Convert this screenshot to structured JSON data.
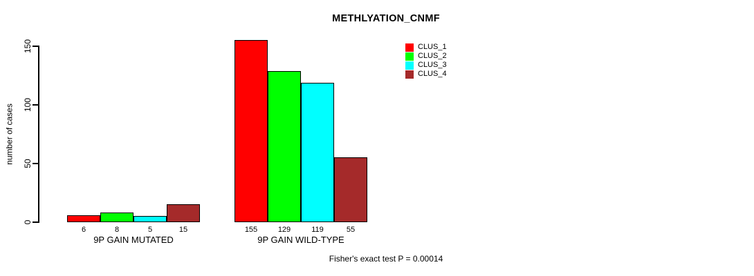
{
  "chart_data": {
    "type": "bar",
    "title": "METHLYATION_CNMF",
    "ylabel": "number of cases",
    "xlabel": "",
    "ylim": [
      0,
      150
    ],
    "yticks": [
      0,
      50,
      100,
      150
    ],
    "grid": false,
    "legend_position": "top-right",
    "categories": [
      "9P GAIN MUTATED",
      "9P GAIN WILD-TYPE"
    ],
    "series": [
      {
        "name": "CLUS_1",
        "color": "#ff0000",
        "values": [
          6,
          155
        ]
      },
      {
        "name": "CLUS_2",
        "color": "#00ff00",
        "values": [
          8,
          129
        ]
      },
      {
        "name": "CLUS_3",
        "color": "#00ffff",
        "values": [
          5,
          119
        ]
      },
      {
        "name": "CLUS_4",
        "color": "#a52a2a",
        "values": [
          15,
          55
        ]
      }
    ],
    "bar_value_labels_shown": true,
    "annotation": "Fisher's exact test P = 0.00014"
  }
}
